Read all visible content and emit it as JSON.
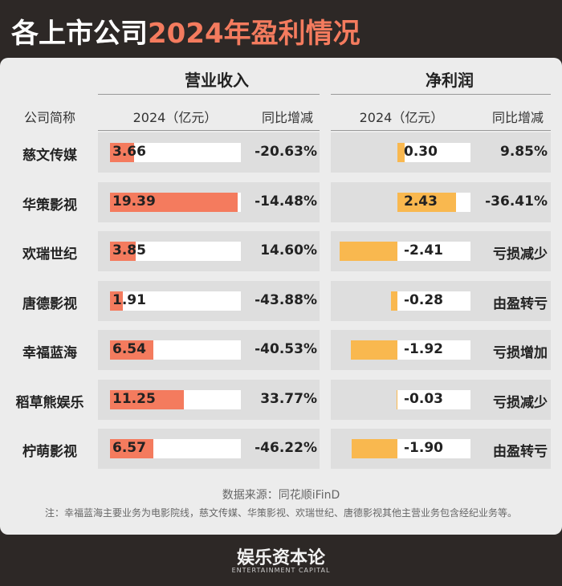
{
  "title_part1": "各上市公司",
  "title_part2": "2024年盈利情况",
  "table": {
    "groups": [
      "营业收入",
      "净利润"
    ],
    "columns": [
      "公司简称",
      "2024（亿元）",
      "同比增减",
      "2024（亿元）",
      "同比增减"
    ],
    "companies": [
      "慈文传媒",
      "华策影视",
      "欢瑞世纪",
      "唐德影视",
      "幸福蓝海",
      "稻草熊娱乐",
      "柠萌影视"
    ],
    "revenue": {
      "color": "#f47b5e",
      "values": [
        3.66,
        19.39,
        3.85,
        1.91,
        6.54,
        11.25,
        6.57
      ]
    },
    "revenue_yoy": [
      "-20.63%",
      "-14.48%",
      "14.60%",
      "-43.88%",
      "-40.53%",
      "33.77%",
      "-46.22%"
    ],
    "profit": {
      "color": "#f9b84f",
      "values": [
        0.3,
        2.43,
        -2.41,
        -0.28,
        -1.92,
        -0.03,
        -1.9
      ],
      "value_labels": [
        "0.30",
        "2.43",
        "-2.41",
        "-0.28",
        "-1.92",
        "-0.03",
        "-1.90"
      ]
    },
    "profit_yoy": [
      "9.85%",
      "-36.41%",
      "亏损减少",
      "由盈转亏",
      "亏损增加",
      "亏损减少",
      "由盈转亏"
    ]
  },
  "source": "数据来源：同花顺iFinD",
  "note": "注：幸福蓝海主要业务为电影院线，慈文传媒、华策影视、欢瑞世纪、唐德影视其他主营业务包含经纪业务等。",
  "brand": "娱乐资本论",
  "brand_en": "ENTERTAINMENT CAPITAL"
}
